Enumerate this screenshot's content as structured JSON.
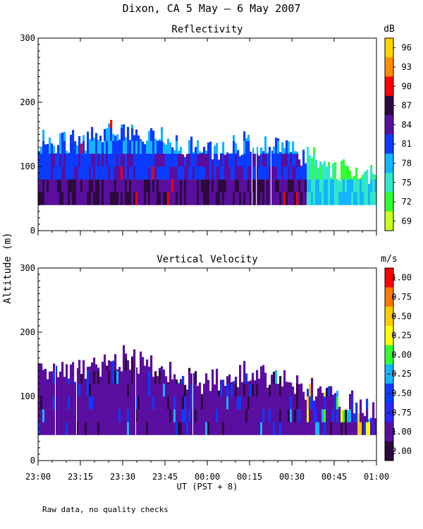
{
  "title": "Dixon, CA  5 May —  6 May 2007",
  "footnote": "Raw data, no quality checks",
  "shared_ylabel": "Altitude (m)",
  "xlabel": "UT  (PST + 8)",
  "x_ticks": [
    "23:00",
    "23:15",
    "23:30",
    "23:45",
    "00:00",
    "00:15",
    "00:30",
    "00:45",
    "01:00"
  ],
  "y_ticks": [
    "0",
    "100",
    "200",
    "300"
  ],
  "chart_data": [
    {
      "type": "heatmap",
      "title": "Reflectivity",
      "x_range": [
        "23:00",
        "01:00"
      ],
      "ylim": [
        0,
        300
      ],
      "ylabel": "Altitude (m)",
      "colorbar": {
        "unit": "dB",
        "labels": [
          "96",
          "93",
          "90",
          "87",
          "84",
          "81",
          "78",
          "75",
          "72",
          "69"
        ],
        "colors": [
          "#ffd200",
          "#ff8c00",
          "#ff0000",
          "#2d0a3c",
          "#5a0ea0",
          "#0a3cff",
          "#14b4ff",
          "#32e6c8",
          "#32ff32",
          "#c8ff1e"
        ]
      },
      "profile": [
        {
          "time": "23:00",
          "top": 160,
          "base": 40
        },
        {
          "time": "23:15",
          "top": 160,
          "base": 40
        },
        {
          "time": "23:30",
          "top": 180,
          "base": 40
        },
        {
          "time": "23:45",
          "top": 160,
          "base": 40
        },
        {
          "time": "00:00",
          "top": 140,
          "base": 40
        },
        {
          "time": "00:15",
          "top": 160,
          "base": 40
        },
        {
          "time": "00:30",
          "top": 140,
          "base": 40
        },
        {
          "time": "00:45",
          "top": 120,
          "base": 40
        },
        {
          "time": "01:00",
          "top": 100,
          "base": 40
        }
      ]
    },
    {
      "type": "heatmap",
      "title": "Vertical Velocity",
      "x_range": [
        "23:00",
        "01:00"
      ],
      "ylim": [
        0,
        300
      ],
      "ylabel": "Altitude (m)",
      "colorbar": {
        "unit": "m/s",
        "labels": [
          "1.00",
          "0.75",
          "0.50",
          "0.25",
          "0.00",
          "-0.25",
          "-0.50",
          "-0.75",
          "-1.00",
          "-2.00"
        ],
        "colors": [
          "#ff0000",
          "#ff7800",
          "#ffcc00",
          "#ffff00",
          "#32ff32",
          "#14b4ff",
          "#0a3cff",
          "#2828ff",
          "#5a0ea0",
          "#2d0a3c"
        ]
      },
      "profile": [
        {
          "time": "23:00",
          "top": 160,
          "base": 40
        },
        {
          "time": "23:15",
          "top": 160,
          "base": 40
        },
        {
          "time": "23:30",
          "top": 180,
          "base": 40
        },
        {
          "time": "23:45",
          "top": 160,
          "base": 40
        },
        {
          "time": "00:00",
          "top": 140,
          "base": 40
        },
        {
          "time": "00:15",
          "top": 160,
          "base": 40
        },
        {
          "time": "00:30",
          "top": 140,
          "base": 40
        },
        {
          "time": "00:45",
          "top": 120,
          "base": 40
        },
        {
          "time": "01:00",
          "top": 100,
          "base": 40
        }
      ]
    }
  ]
}
